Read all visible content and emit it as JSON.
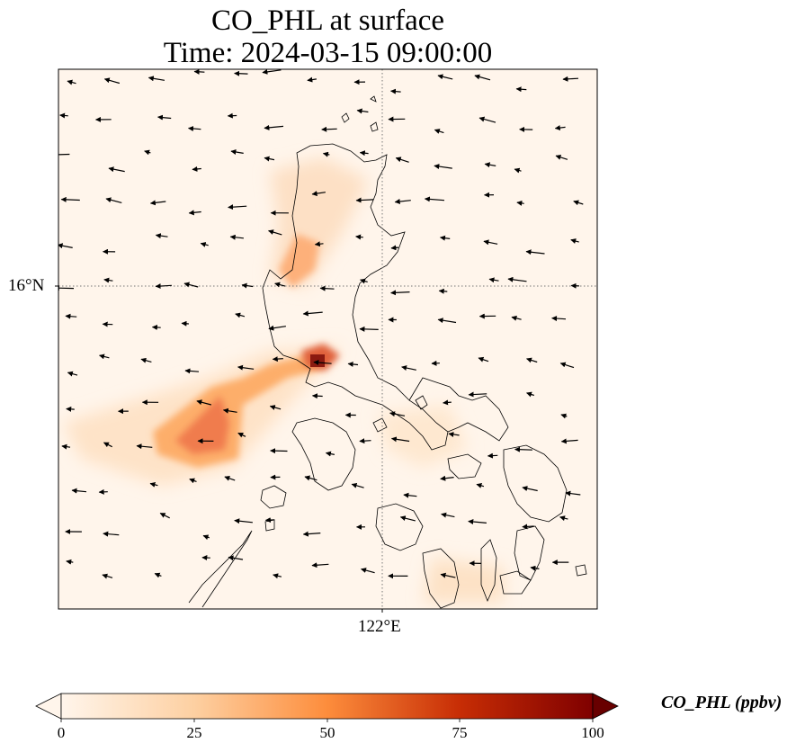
{
  "title": {
    "line1": "CO_PHL at surface",
    "line2": "Time: 2024-03-15 09:00:00"
  },
  "map": {
    "lat_tick": "16°N",
    "lon_tick": "122°E",
    "gridline_style": "dotted"
  },
  "colorbar": {
    "label": "CO_PHL (ppbv)",
    "ticks": [
      "0",
      "25",
      "50",
      "75",
      "100"
    ],
    "colors": [
      "#fff5eb",
      "#fdd0a2",
      "#fd8d3c",
      "#d94801",
      "#7f0000"
    ],
    "extend": "both"
  }
}
